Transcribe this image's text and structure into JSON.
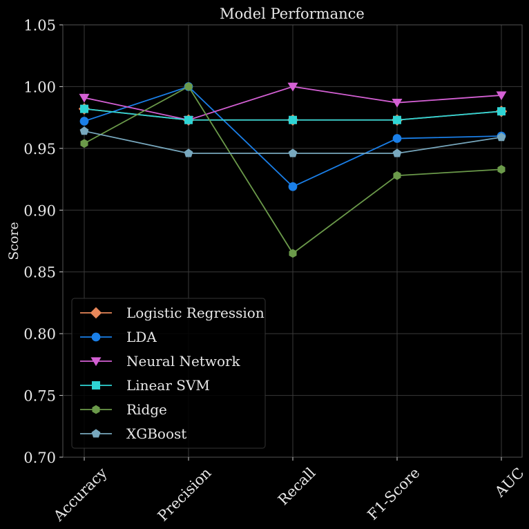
{
  "chart_data": {
    "type": "line",
    "title": "Model Performance",
    "xlabel": "",
    "ylabel": "Score",
    "categories": [
      "Accuracy",
      "Precision",
      "Recall",
      "F1-Score",
      "AUC"
    ],
    "ylim": [
      0.7,
      1.05
    ],
    "yticks": [
      "0.70",
      "0.75",
      "0.80",
      "0.85",
      "0.90",
      "0.95",
      "1.00",
      "1.05"
    ],
    "grid": true,
    "legend_position": "lower-left",
    "series": [
      {
        "name": "Logistic Regression",
        "color": "#e8875a",
        "marker": "diamond",
        "values": [
          0.982,
          0.973,
          0.973,
          0.973,
          0.98
        ]
      },
      {
        "name": "LDA",
        "color": "#1a7fe8",
        "marker": "circle",
        "values": [
          0.972,
          1.0,
          0.919,
          0.958,
          0.96
        ]
      },
      {
        "name": "Neural Network",
        "color": "#d460d4",
        "marker": "triangle-down",
        "values": [
          0.991,
          0.973,
          1.0,
          0.987,
          0.993
        ]
      },
      {
        "name": "Linear SVM",
        "color": "#2fd4d4",
        "marker": "square",
        "values": [
          0.982,
          0.973,
          0.973,
          0.973,
          0.98
        ]
      },
      {
        "name": "Ridge",
        "color": "#6b9a4a",
        "marker": "hexagon",
        "values": [
          0.954,
          1.0,
          0.865,
          0.928,
          0.933
        ]
      },
      {
        "name": "XGBoost",
        "color": "#78a8be",
        "marker": "pentagon",
        "values": [
          0.964,
          0.946,
          0.946,
          0.946,
          0.959
        ]
      }
    ]
  }
}
